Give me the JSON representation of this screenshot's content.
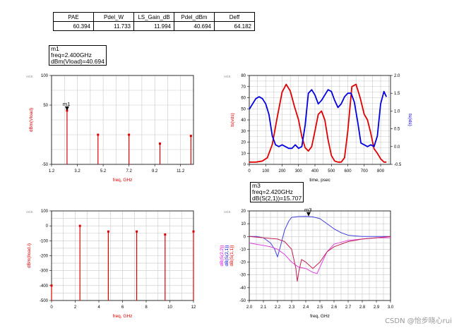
{
  "summary_table": {
    "headers": [
      "PAE",
      "Pdel_W",
      "LS_Gain_dB",
      "Pdel_dBm",
      "Deff"
    ],
    "values": [
      "60.394",
      "11.733",
      "11.994",
      "40.694",
      "64.182"
    ]
  },
  "markers": {
    "m1": {
      "name": "m1",
      "line1": "freq=2.400GHz",
      "line2": "dBm(Vload)=40.694"
    },
    "m3": {
      "name": "m3",
      "line1": "freq=2.420GHz",
      "line2": "dB(S(2,1))=15.707"
    }
  },
  "watermark": "CSDN @怡步晓心rui",
  "colors": {
    "red": "#e00000",
    "blue": "#0000e0",
    "magenta": "#e000e0",
    "grid": "#c8c8c8"
  },
  "chart_data": [
    {
      "id": "spectrum",
      "type": "bar",
      "ags": "AGS",
      "ylabel": "dBm(Vload)",
      "xlabel": "freq, GHz",
      "xlim": [
        1.2,
        12.2
      ],
      "ylim": [
        -50,
        100
      ],
      "xticks": [
        "1.2",
        "3.2",
        "5.2",
        "7.2",
        "9.2",
        "11.2"
      ],
      "yticks": [
        "100",
        "50",
        "-50"
      ],
      "grid": true,
      "x": [
        2.4,
        4.8,
        7.2,
        9.6,
        12.0
      ],
      "values": [
        40.694,
        0,
        0,
        -15,
        -2
      ]
    },
    {
      "id": "waveform",
      "type": "line",
      "ags": "AGS",
      "ylabel": "ts(vds)",
      "y2label": "ts(ids)",
      "xlabel": "time, psec",
      "xlim": [
        0,
        860
      ],
      "ylim": [
        0,
        80
      ],
      "y2lim": [
        -0.5,
        2.0
      ],
      "xticks": [
        "0",
        "100",
        "200",
        "300",
        "400",
        "500",
        "600",
        "700",
        "800"
      ],
      "yticks": [
        "0",
        "10",
        "20",
        "30",
        "40",
        "50",
        "60",
        "70",
        "80"
      ],
      "y2ticks": [
        "-0.5",
        "0.0",
        "0.5",
        "1.0",
        "1.5",
        "2.0"
      ],
      "grid": true,
      "series": [
        {
          "name": "ts(vds)",
          "axis": "left",
          "color": "#e00000",
          "x": [
            0,
            40,
            80,
            110,
            140,
            170,
            200,
            225,
            250,
            275,
            300,
            320,
            340,
            360,
            380,
            400,
            420,
            440,
            460,
            480,
            500,
            520,
            540,
            560,
            580,
            600,
            625,
            650,
            675,
            700,
            720,
            740,
            760,
            780,
            800,
            820,
            835
          ],
          "y": [
            2,
            2,
            3,
            6,
            18,
            42,
            65,
            72,
            66,
            52,
            40,
            25,
            15,
            12,
            16,
            30,
            45,
            48,
            40,
            22,
            8,
            3,
            2,
            2,
            6,
            30,
            70,
            72,
            60,
            45,
            40,
            28,
            14,
            10,
            5,
            2,
            2
          ]
        },
        {
          "name": "ts(ids)",
          "axis": "right",
          "color": "#0000e0",
          "x": [
            0,
            20,
            40,
            60,
            80,
            100,
            120,
            140,
            160,
            180,
            200,
            220,
            240,
            260,
            280,
            300,
            320,
            340,
            360,
            380,
            400,
            420,
            440,
            460,
            480,
            500,
            520,
            540,
            560,
            580,
            600,
            620,
            640,
            660,
            680,
            700,
            720,
            740,
            760,
            780,
            800,
            820,
            835
          ],
          "y": [
            1.05,
            1.2,
            1.35,
            1.4,
            1.35,
            1.2,
            0.9,
            0.3,
            0.05,
            0.0,
            0.05,
            0.0,
            -0.05,
            -0.05,
            0.05,
            -0.05,
            0.0,
            0.6,
            1.5,
            1.6,
            1.45,
            1.2,
            1.3,
            1.45,
            1.6,
            1.55,
            1.3,
            1.1,
            1.2,
            1.4,
            1.5,
            1.5,
            1.25,
            0.7,
            0.1,
            0.05,
            0.0,
            0.05,
            0.0,
            0.3,
            1.2,
            1.55,
            1.4
          ]
        }
      ]
    },
    {
      "id": "current_spectrum",
      "type": "bar",
      "ags": "AGS",
      "ylabel": "dBm(Iload.i)",
      "xlabel": "freq, GHz",
      "xlim": [
        0,
        12
      ],
      "ylim": [
        -500,
        100
      ],
      "xticks": [
        "0",
        "2",
        "4",
        "6",
        "8",
        "10",
        "12"
      ],
      "yticks": [
        "100",
        "0",
        "-100",
        "-200",
        "-300",
        "-400",
        "-500"
      ],
      "grid": true,
      "x": [
        0,
        2.4,
        4.8,
        7.2,
        9.6,
        12.0
      ],
      "values": [
        -400,
        0,
        -38,
        -38,
        -58,
        -38
      ]
    },
    {
      "id": "sparams",
      "type": "line",
      "ags": "AGS",
      "ylabel_parts": [
        "dB(S(2,2))",
        "dB(S(2,1))",
        "dB(S(1,1))"
      ],
      "xlabel": "freq, GHz",
      "xlim": [
        2.0,
        3.0
      ],
      "ylim": [
        -50,
        20
      ],
      "xticks": [
        "2.0",
        "2.1",
        "2.2",
        "2.3",
        "2.4",
        "2.5",
        "2.6",
        "2.7",
        "2.8",
        "2.9",
        "3.0"
      ],
      "yticks": [
        "20",
        "10",
        "0",
        "-10",
        "-20",
        "-30",
        "-40",
        "-50"
      ],
      "grid": true,
      "series": [
        {
          "name": "dB(S(2,1))",
          "color": "#4040e0",
          "x": [
            2.0,
            2.05,
            2.1,
            2.15,
            2.18,
            2.2,
            2.22,
            2.25,
            2.28,
            2.3,
            2.35,
            2.4,
            2.45,
            2.5,
            2.55,
            2.6,
            2.65,
            2.7,
            2.8,
            2.9,
            3.0
          ],
          "y": [
            0,
            0,
            -1,
            -5,
            -10,
            -16,
            -8,
            5,
            12,
            15,
            15.6,
            15.7,
            15.3,
            14,
            10,
            6,
            3,
            1,
            0,
            0,
            0
          ]
        },
        {
          "name": "dB(S(2,2))",
          "color": "#e040e0",
          "x": [
            2.0,
            2.05,
            2.1,
            2.15,
            2.2,
            2.25,
            2.3,
            2.35,
            2.4,
            2.45,
            2.48,
            2.5,
            2.55,
            2.6,
            2.7,
            2.8,
            2.9,
            3.0
          ],
          "y": [
            -5,
            -6,
            -7,
            -8,
            -10,
            -14,
            -20,
            -24,
            -25,
            -28,
            -29,
            -24,
            -12,
            -6,
            -3,
            -2,
            -1,
            -1
          ]
        },
        {
          "name": "dB(S(1,1))",
          "color": "#c02050",
          "x": [
            2.0,
            2.1,
            2.2,
            2.25,
            2.3,
            2.33,
            2.34,
            2.35,
            2.37,
            2.4,
            2.42,
            2.45,
            2.5,
            2.55,
            2.6,
            2.7,
            2.8,
            2.9,
            3.0
          ],
          "y": [
            0,
            -1,
            -2,
            -4,
            -10,
            -25,
            -35,
            -28,
            -18,
            -20,
            -22,
            -25,
            -20,
            -12,
            -8,
            -4,
            -2,
            -1,
            0
          ]
        }
      ],
      "marker": {
        "name": "m3",
        "x": 2.42,
        "y": 15.707
      }
    }
  ]
}
